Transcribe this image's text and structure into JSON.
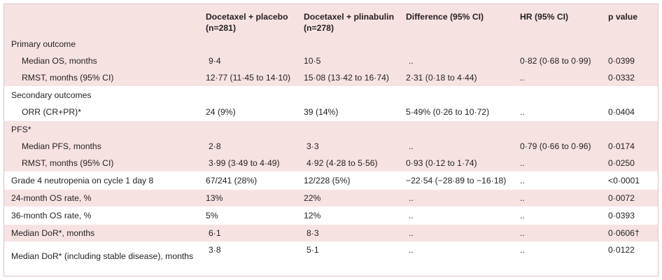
{
  "header": {
    "col1": "",
    "col2_line1": "Docetaxel + placebo",
    "col2_line2": "(n=281)",
    "col3_line1": "Docetaxel + plinabulin",
    "col3_line2": "(n=278)",
    "col4": "Difference (95% CI)",
    "col5": "HR (95% CI)",
    "col6": "p value"
  },
  "rows": [
    {
      "label": "Primary outcome",
      "c2": "",
      "c3": "",
      "c4": "",
      "c5": "",
      "c6": ""
    },
    {
      "label": "Median OS, months",
      "c2": "9·4",
      "c3": "10·5",
      "c4": "..",
      "c5": "0·82 (0·68 to 0·99)",
      "c6": "0·0399"
    },
    {
      "label": "RMST, months (95% CI)",
      "c2": "12·77 (11·45 to 14·10)",
      "c3": "15·08 (13·42 to 16·74)",
      "c4": "2·31 (0·18 to 4·44)",
      "c5": "..",
      "c6": "0·0332"
    },
    {
      "label": "Secondary outcomes",
      "c2": "",
      "c3": "",
      "c4": "",
      "c5": "",
      "c6": ""
    },
    {
      "label": "ORR (CR+PR)*",
      "c2": "24 (9%)",
      "c3": "39 (14%)",
      "c4": "5·49% (0·26 to 10·72)",
      "c5": "..",
      "c6": "0·0404"
    },
    {
      "label": "PFS*",
      "c2": "",
      "c3": "",
      "c4": "",
      "c5": "",
      "c6": ""
    },
    {
      "label": "Median PFS, months",
      "c2": "2·8",
      "c3": "3·3",
      "c4": "..",
      "c5": "0·79 (0·66 to 0·96)",
      "c6": "0·0174"
    },
    {
      "label": "RMST, months (95% CI)",
      "c2": "3·99 (3·49 to 4·49)",
      "c3": "4·92 (4·28 to 5·56)",
      "c4": "0·93 (0·12 to 1·74)",
      "c5": "..",
      "c6": "0·0250"
    },
    {
      "label": "Grade 4 neutropenia on cycle 1 day 8",
      "c2": "67/241 (28%)",
      "c3": "12/228 (5%)",
      "c4": "−22·54 (−28·89 to −16·18)",
      "c5": "..",
      "c6": "<0·0001"
    },
    {
      "label": "24-month OS rate, %",
      "c2": "13%",
      "c3": "22%",
      "c4": "..",
      "c5": "..",
      "c6": "0·0072"
    },
    {
      "label": "36-month OS rate, %",
      "c2": "5%",
      "c3": "12%",
      "c4": "..",
      "c5": "..",
      "c6": "0·0393"
    },
    {
      "label": "Median DoR*, months",
      "c2": "6·1",
      "c3": "8·3",
      "c4": "..",
      "c5": "..",
      "c6": "0·0606†"
    },
    {
      "label": "Median DoR* (including stable disease), months",
      "c2": "3·8",
      "c3": "5·1",
      "c4": "..",
      "c5": "..",
      "c6": "0·0122"
    }
  ]
}
